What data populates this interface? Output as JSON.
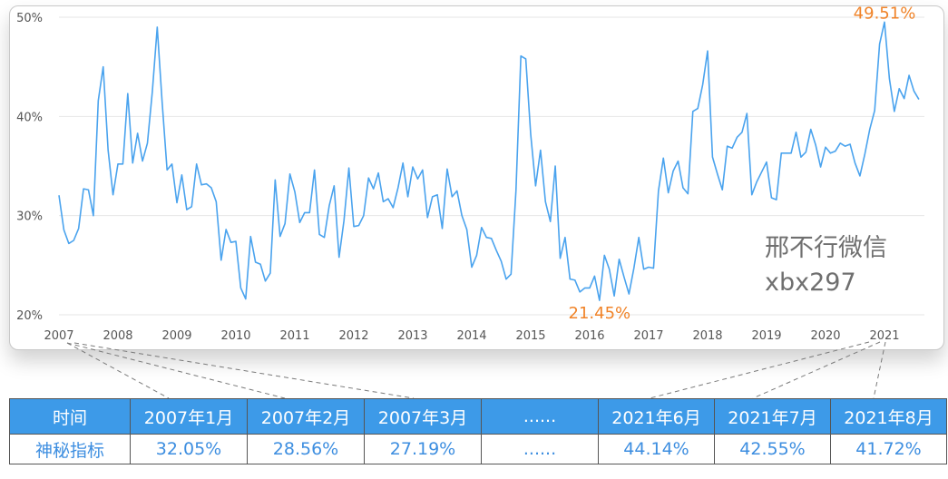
{
  "chart_data": {
    "type": "line",
    "x_start": "2007-01",
    "x_end": "2021-08",
    "x_tick_labels": [
      "2007",
      "2008",
      "2009",
      "2010",
      "2011",
      "2012",
      "2013",
      "2014",
      "2015",
      "2016",
      "2017",
      "2018",
      "2019",
      "2020",
      "2021"
    ],
    "y_tick_labels": [
      "20%",
      "30%",
      "40%",
      "50%"
    ],
    "ylim": [
      20,
      50
    ],
    "grid": true,
    "color": "#4aa3ee",
    "series": [
      {
        "values": [
          32.05,
          28.56,
          27.19,
          27.5,
          28.7,
          32.7,
          32.6,
          30.0,
          41.6,
          45.0,
          36.6,
          32.1,
          35.2,
          35.2,
          42.3,
          35.3,
          38.3,
          35.5,
          37.3,
          42.5,
          49.0,
          41.4,
          34.6,
          35.2,
          31.3,
          34.1,
          30.6,
          30.9,
          35.2,
          33.1,
          33.2,
          32.8,
          31.4,
          25.5,
          28.6,
          27.3,
          27.4,
          22.7,
          21.6,
          27.9,
          25.3,
          25.1,
          23.4,
          24.2,
          33.6,
          27.9,
          29.2,
          34.2,
          32.4,
          29.3,
          30.3,
          30.3,
          34.6,
          28.1,
          27.8,
          31.0,
          33.0,
          25.8,
          29.5,
          34.8,
          28.9,
          29.0,
          30.0,
          33.8,
          32.7,
          34.3,
          31.4,
          31.7,
          30.8,
          32.8,
          35.3,
          31.9,
          34.9,
          33.7,
          34.6,
          29.8,
          31.9,
          32.1,
          28.7,
          34.7,
          31.9,
          32.5,
          30.0,
          28.6,
          24.8,
          26.0,
          28.8,
          27.8,
          27.7,
          26.5,
          25.4,
          23.6,
          24.1,
          32.5,
          46.1,
          45.8,
          38.2,
          33.0,
          36.6,
          31.4,
          29.4,
          35.0,
          25.7,
          27.8,
          23.6,
          23.5,
          22.3,
          22.7,
          22.7,
          23.9,
          21.45,
          26.0,
          24.6,
          21.9,
          25.6,
          23.8,
          22.1,
          24.7,
          27.8,
          24.6,
          24.8,
          24.7,
          32.5,
          35.8,
          32.3,
          34.5,
          35.5,
          32.8,
          32.2,
          40.5,
          40.8,
          43.2,
          46.6,
          35.9,
          34.2,
          32.6,
          37.0,
          36.8,
          37.9,
          38.4,
          40.3,
          32.1,
          33.4,
          34.4,
          35.4,
          31.8,
          31.6,
          36.3,
          36.3,
          36.3,
          38.4,
          35.9,
          36.4,
          38.7,
          37.1,
          34.9,
          36.9,
          36.3,
          36.5,
          37.3,
          37.0,
          37.2,
          35.3,
          34.0,
          36.2,
          38.7,
          40.6,
          47.3,
          49.51,
          43.8,
          40.5,
          42.8,
          41.8,
          44.14,
          42.55,
          41.72
        ]
      }
    ],
    "annotations": [
      {
        "text": "49.51%",
        "x": "2021-01",
        "y": 49.51,
        "color": "#f08328"
      },
      {
        "text": "21.45%",
        "x": "2016-03",
        "y": 21.45,
        "color": "#f08328"
      }
    ]
  },
  "watermark": {
    "line1": "邢不行微信",
    "line2": "xbx297"
  },
  "table": {
    "header": [
      "时间",
      "2007年1月",
      "2007年2月",
      "2007年3月",
      "......",
      "2021年6月",
      "2021年7月",
      "2021年8月"
    ],
    "row": [
      "神秘指标",
      "32.05%",
      "28.56%",
      "27.19%",
      "......",
      "44.14%",
      "42.55%",
      "41.72%"
    ]
  },
  "colors": {
    "header_bg": "#3d9ae8",
    "header_text": "#ffffff",
    "row_text": "#3d8ee0",
    "connector": "#7a7a7a"
  }
}
